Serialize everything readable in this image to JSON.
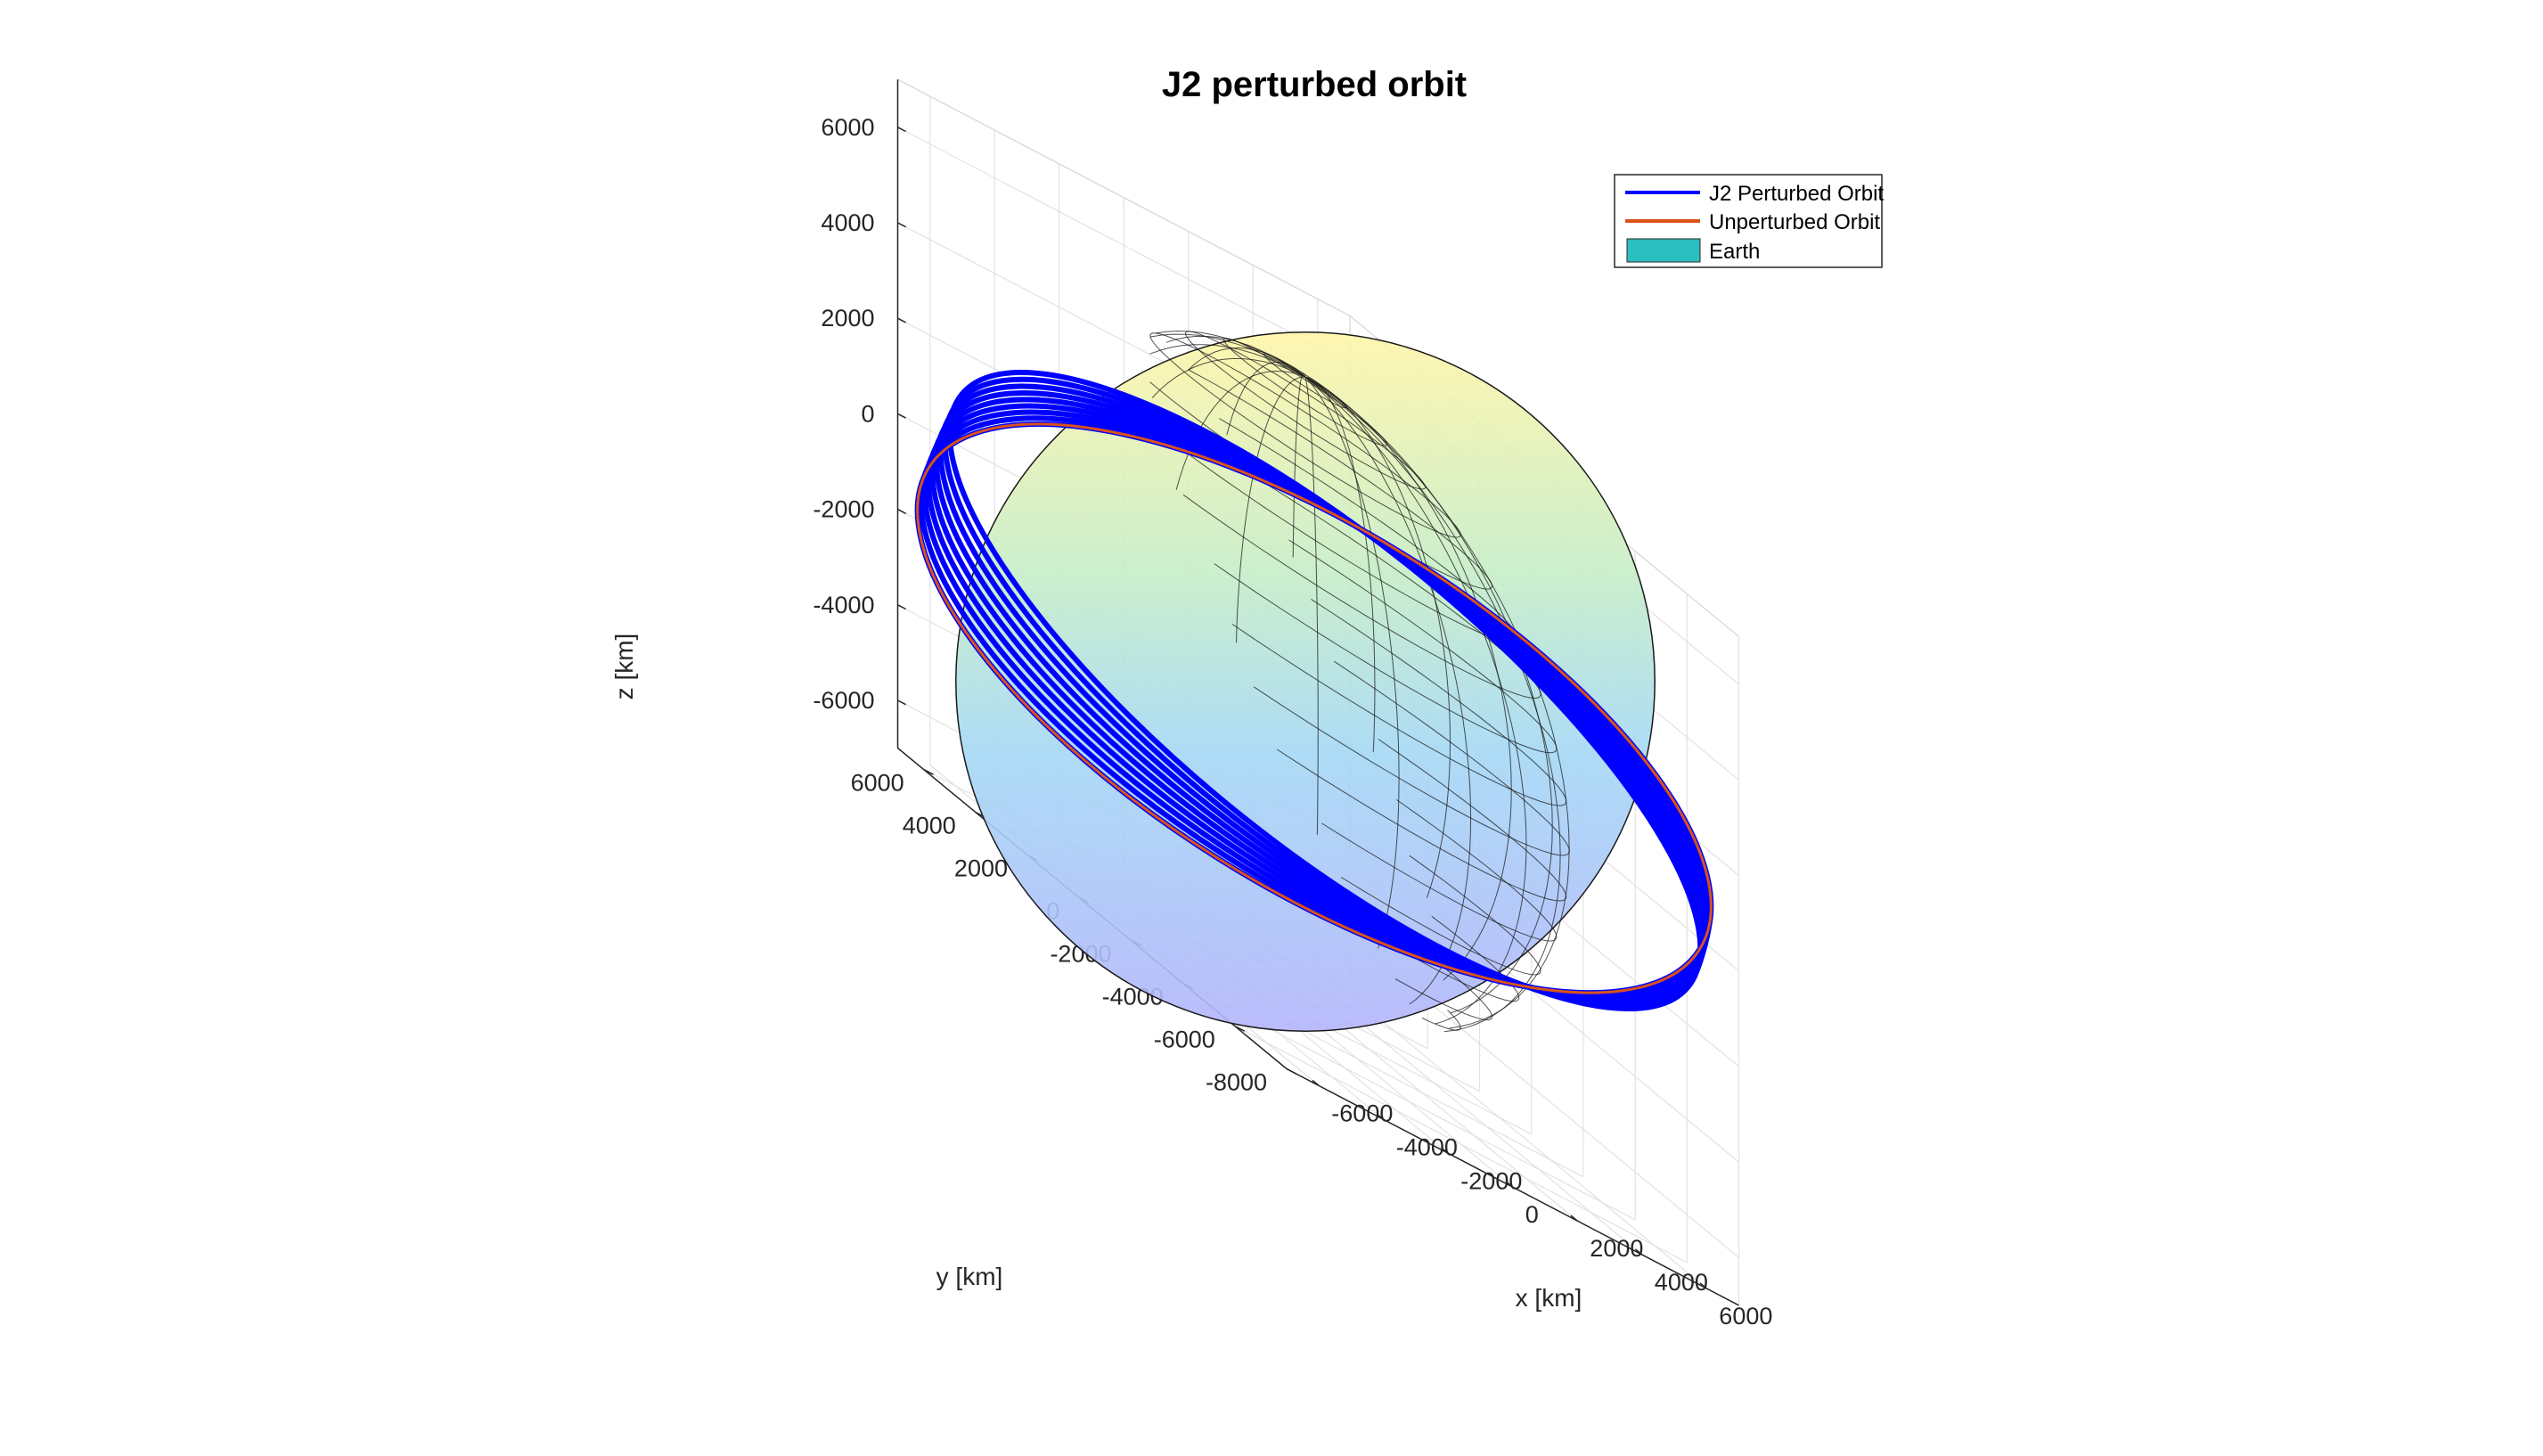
{
  "chart_data": {
    "type": "line",
    "title": "J2 perturbed orbit",
    "xlabel": "x [km]",
    "ylabel": "y [km]",
    "zlabel": "z [km]",
    "xlim": [
      -7000,
      7000
    ],
    "ylim": [
      -8000,
      7000
    ],
    "zlim": [
      -7000,
      7000
    ],
    "x_ticks": [
      "-6000",
      "-4000",
      "-2000",
      "0",
      "2000",
      "4000",
      "6000"
    ],
    "y_ticks": [
      "-8000",
      "-6000",
      "-4000",
      "-2000",
      "0",
      "2000",
      "4000",
      "6000"
    ],
    "z_ticks": [
      "-6000",
      "-4000",
      "-2000",
      "0",
      "2000",
      "4000",
      "6000"
    ],
    "grid": true,
    "legend_position": "top-right",
    "earth_radius": 6378,
    "series": [
      {
        "name": "J2 Perturbed Orbit",
        "color": "#0000ff"
      },
      {
        "name": "Unperturbed Orbit",
        "color": "#d95319"
      },
      {
        "name": "Earth",
        "color": "#2cbfbf",
        "kind": "surface"
      }
    ]
  }
}
